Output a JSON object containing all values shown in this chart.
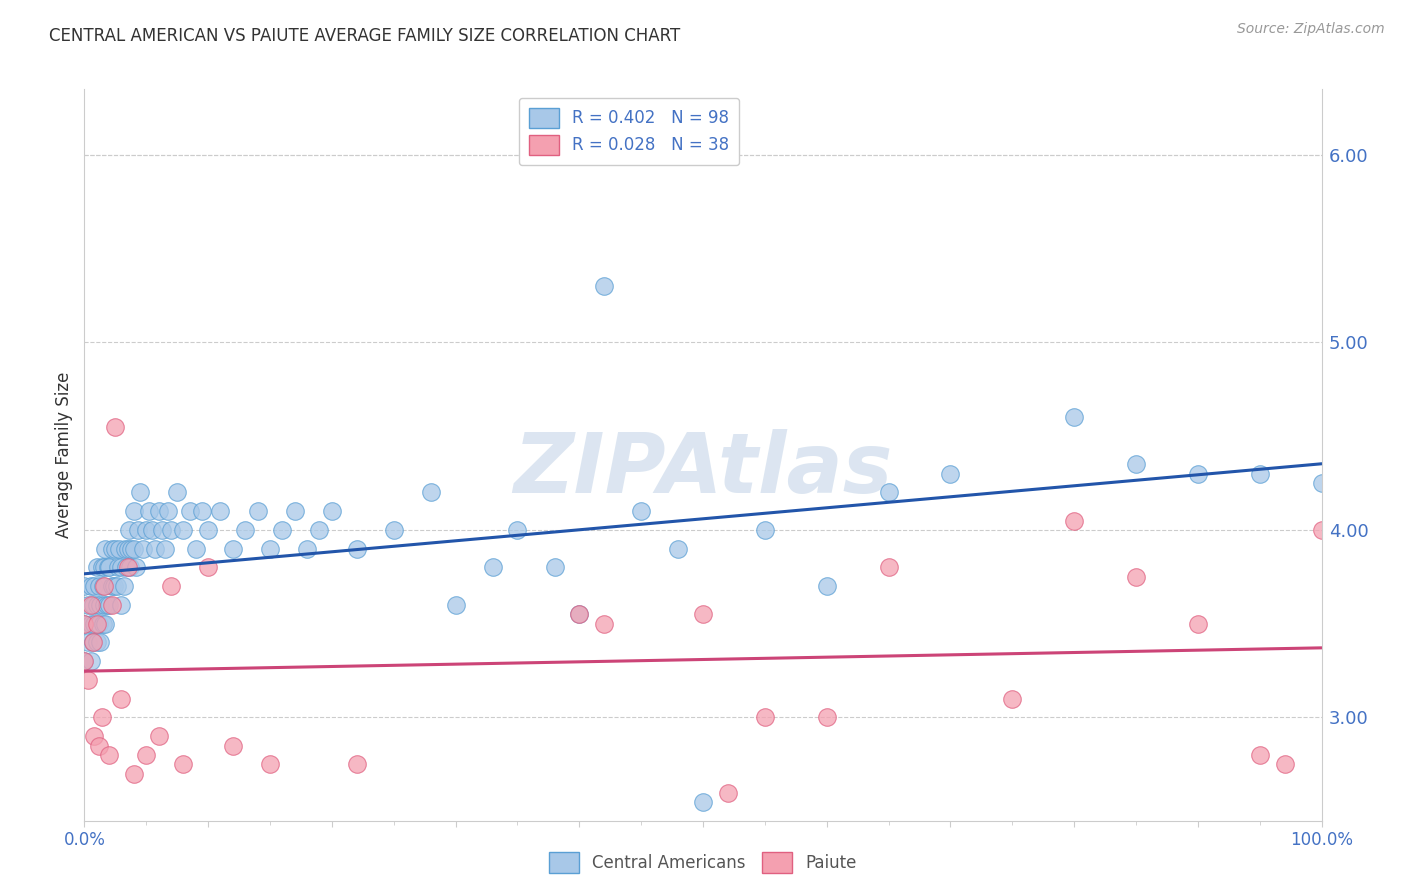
{
  "title": "CENTRAL AMERICAN VS PAIUTE AVERAGE FAMILY SIZE CORRELATION CHART",
  "source": "Source: ZipAtlas.com",
  "ylabel": "Average Family Size",
  "watermark": "ZIPAtlas",
  "blue_R": 0.402,
  "blue_N": 98,
  "pink_R": 0.028,
  "pink_N": 38,
  "blue_color": "#a8c8e8",
  "blue_edge_color": "#5a9fd4",
  "blue_line_color": "#2255aa",
  "pink_color": "#f4a0b0",
  "pink_edge_color": "#e06080",
  "pink_line_color": "#cc4477",
  "legend_label_blue": "R = 0.402   N = 98",
  "legend_label_pink": "R = 0.028   N = 38",
  "xmin": 0.0,
  "xmax": 1.0,
  "ymin": 2.45,
  "ymax": 6.35,
  "right_yticks": [
    3.0,
    4.0,
    5.0,
    6.0
  ],
  "blue_scatter_x": [
    0.0,
    0.0,
    0.0,
    0.003,
    0.003,
    0.005,
    0.005,
    0.005,
    0.007,
    0.007,
    0.008,
    0.008,
    0.01,
    0.01,
    0.01,
    0.012,
    0.012,
    0.013,
    0.013,
    0.014,
    0.015,
    0.015,
    0.016,
    0.016,
    0.017,
    0.017,
    0.018,
    0.019,
    0.02,
    0.02,
    0.022,
    0.022,
    0.024,
    0.025,
    0.026,
    0.027,
    0.028,
    0.03,
    0.03,
    0.032,
    0.033,
    0.034,
    0.035,
    0.036,
    0.037,
    0.038,
    0.04,
    0.04,
    0.042,
    0.043,
    0.045,
    0.047,
    0.05,
    0.052,
    0.055,
    0.057,
    0.06,
    0.063,
    0.065,
    0.068,
    0.07,
    0.075,
    0.08,
    0.085,
    0.09,
    0.095,
    0.1,
    0.11,
    0.12,
    0.13,
    0.14,
    0.15,
    0.16,
    0.17,
    0.18,
    0.19,
    0.2,
    0.22,
    0.25,
    0.28,
    0.3,
    0.33,
    0.35,
    0.38,
    0.4,
    0.42,
    0.45,
    0.48,
    0.5,
    0.55,
    0.6,
    0.65,
    0.7,
    0.8,
    0.85,
    0.9,
    0.95,
    1.0
  ],
  "blue_scatter_y": [
    3.5,
    3.3,
    3.7,
    3.4,
    3.6,
    3.3,
    3.5,
    3.7,
    3.4,
    3.6,
    3.5,
    3.7,
    3.4,
    3.6,
    3.8,
    3.5,
    3.7,
    3.4,
    3.6,
    3.8,
    3.5,
    3.7,
    3.6,
    3.8,
    3.5,
    3.9,
    3.6,
    3.8,
    3.6,
    3.8,
    3.7,
    3.9,
    3.7,
    3.9,
    3.7,
    3.8,
    3.9,
    3.6,
    3.8,
    3.7,
    3.9,
    3.8,
    3.9,
    4.0,
    3.8,
    3.9,
    4.1,
    3.9,
    3.8,
    4.0,
    4.2,
    3.9,
    4.0,
    4.1,
    4.0,
    3.9,
    4.1,
    4.0,
    3.9,
    4.1,
    4.0,
    4.2,
    4.0,
    4.1,
    3.9,
    4.1,
    4.0,
    4.1,
    3.9,
    4.0,
    4.1,
    3.9,
    4.0,
    4.1,
    3.9,
    4.0,
    4.1,
    3.9,
    4.0,
    4.2,
    3.6,
    3.8,
    4.0,
    3.8,
    3.55,
    5.3,
    4.1,
    3.9,
    2.55,
    4.0,
    3.7,
    4.2,
    4.3,
    4.6,
    4.35,
    4.3,
    4.3,
    4.25
  ],
  "pink_scatter_x": [
    0.0,
    0.0,
    0.003,
    0.005,
    0.007,
    0.008,
    0.01,
    0.012,
    0.014,
    0.016,
    0.02,
    0.022,
    0.025,
    0.03,
    0.035,
    0.04,
    0.05,
    0.06,
    0.07,
    0.08,
    0.1,
    0.12,
    0.15,
    0.22,
    0.4,
    0.42,
    0.5,
    0.52,
    0.55,
    0.6,
    0.65,
    0.75,
    0.8,
    0.85,
    0.9,
    0.95,
    0.97,
    1.0
  ],
  "pink_scatter_y": [
    3.5,
    3.3,
    3.2,
    3.6,
    3.4,
    2.9,
    3.5,
    2.85,
    3.0,
    3.7,
    2.8,
    3.6,
    4.55,
    3.1,
    3.8,
    2.7,
    2.8,
    2.9,
    3.7,
    2.75,
    3.8,
    2.85,
    2.75,
    2.75,
    3.55,
    3.5,
    3.55,
    2.6,
    3.0,
    3.0,
    3.8,
    3.1,
    4.05,
    3.75,
    3.5,
    2.8,
    2.75,
    4.0
  ],
  "background_color": "#ffffff",
  "grid_color": "#cccccc",
  "title_color": "#333333",
  "axis_label_color": "#4472c4",
  "legend_text_color": "#4472c4"
}
